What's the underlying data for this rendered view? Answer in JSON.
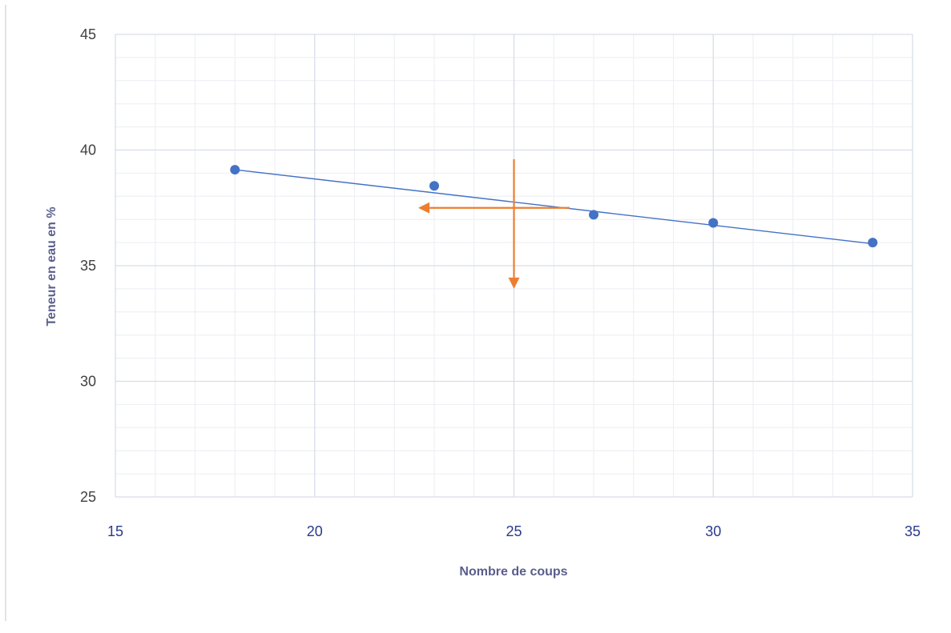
{
  "colors": {
    "series": "#4472c4",
    "trendline": "#4472c4",
    "annotation_arrows": "#ed7d31",
    "grid_major": "#d9dde8",
    "grid_minor": "#eceef3",
    "x_tick_text": "#2a3a8c",
    "y_tick_text": "#404040",
    "axis_title_text": "#5a5e8c"
  },
  "chart_data": {
    "type": "scatter",
    "title": "",
    "xlabel": "Nombre de coups",
    "ylabel": "Teneur en eau en %",
    "xlim": [
      15,
      35
    ],
    "ylim": [
      25,
      45
    ],
    "x_ticks": [
      15,
      20,
      25,
      30,
      35
    ],
    "y_ticks": [
      25,
      30,
      35,
      40,
      45
    ],
    "x_tick_labels": [
      "15",
      "20",
      "25",
      "30",
      "35"
    ],
    "y_tick_labels": [
      "25",
      "30",
      "35",
      "40",
      "45"
    ],
    "grid": true,
    "minor_grid": true,
    "legend": "none",
    "series": [
      {
        "x": [
          18,
          23,
          27,
          30,
          34
        ],
        "y": [
          39.15,
          38.45,
          37.2,
          36.85,
          36.0
        ]
      }
    ],
    "trendline": {
      "type": "linear",
      "x": [
        18,
        34
      ],
      "y": [
        39.15,
        35.95
      ]
    },
    "annotations": [
      {
        "type": "arrow",
        "from": [
          26.4,
          37.5
        ],
        "to": [
          22.6,
          37.5
        ]
      },
      {
        "type": "arrow",
        "from": [
          25,
          39.6
        ],
        "to": [
          25,
          34.0
        ]
      }
    ]
  }
}
